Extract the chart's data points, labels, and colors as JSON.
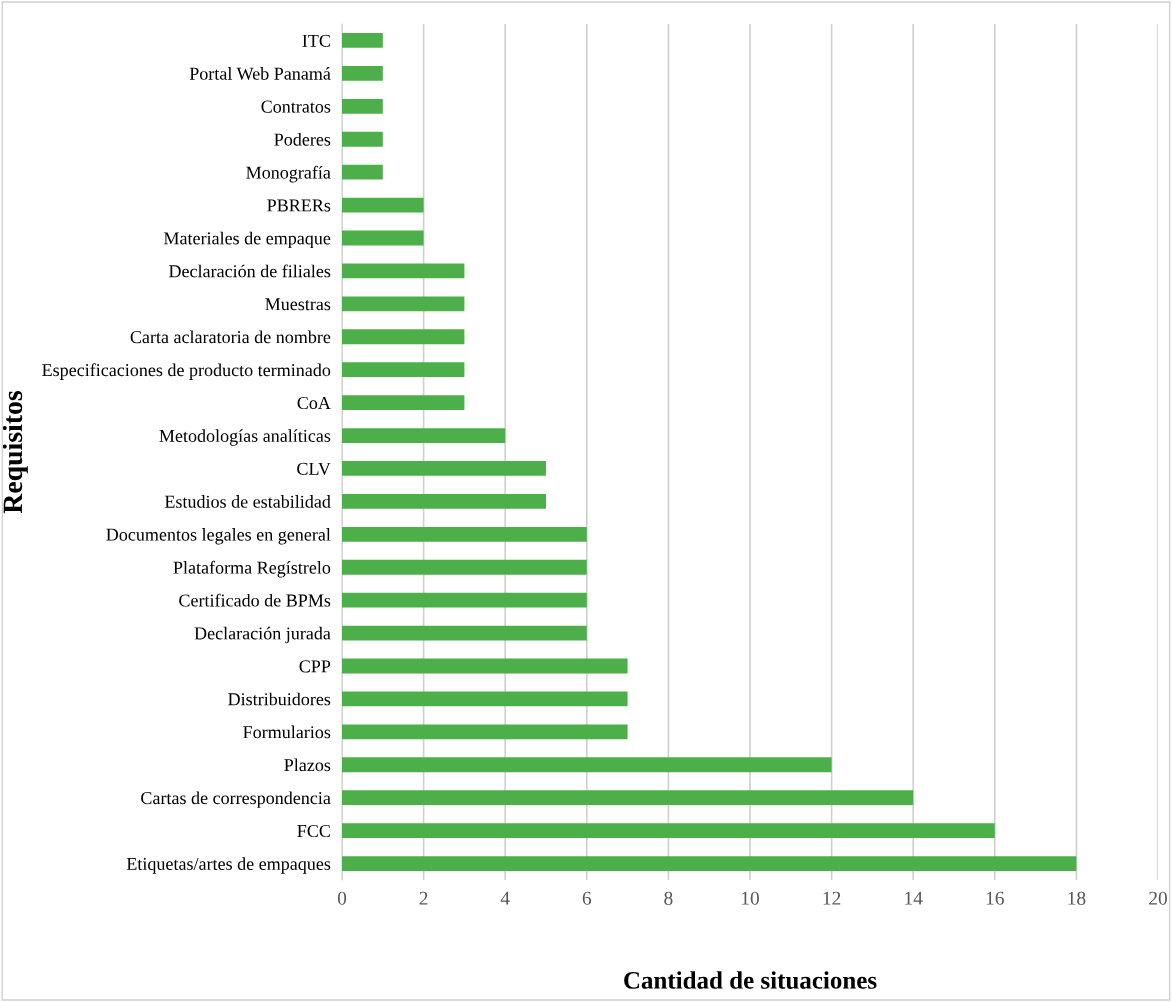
{
  "chart_data": {
    "type": "bar",
    "orientation": "horizontal",
    "xlabel": "Cantidad de situaciones",
    "ylabel": "Requisitos",
    "categories": [
      "ITC",
      "Portal Web Panamá",
      "Contratos",
      "Poderes",
      "Monografía",
      "PBRERs",
      "Materiales de empaque",
      "Declaración de filiales",
      "Muestras",
      "Carta aclaratoria de nombre",
      "Especificaciones de producto terminado",
      "CoA",
      "Metodologías analíticas",
      "CLV",
      "Estudios de estabilidad",
      "Documentos legales en general",
      "Plataforma Regístrelo",
      "Certificado de BPMs",
      "Declaración jurada",
      "CPP",
      "Distribuidores",
      "Formularios",
      "Plazos",
      "Cartas de correspondencia",
      "FCC",
      "Etiquetas/artes de empaques"
    ],
    "values": [
      1,
      1,
      1,
      1,
      1,
      2,
      2,
      3,
      3,
      3,
      3,
      3,
      4,
      5,
      5,
      6,
      6,
      6,
      6,
      7,
      7,
      7,
      12,
      14,
      16,
      18
    ],
    "color": "#4caf4a",
    "xlim": [
      0,
      20
    ],
    "xticks": [
      0,
      2,
      4,
      6,
      8,
      10,
      12,
      14,
      16,
      18,
      20
    ],
    "grid": "x",
    "legend": false
  }
}
